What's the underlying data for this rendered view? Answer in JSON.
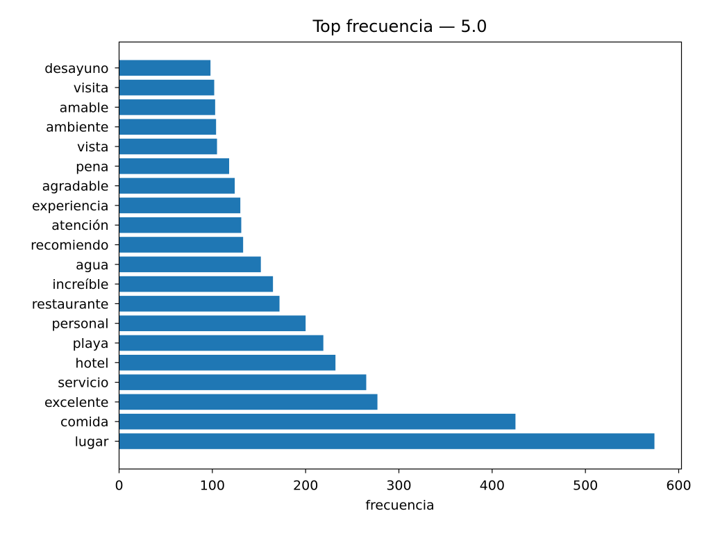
{
  "chart_data": {
    "type": "bar",
    "orientation": "horizontal",
    "title": "Top frecuencia — 5.0",
    "xlabel": "frecuencia",
    "ylabel": "",
    "xlim": [
      0,
      603
    ],
    "xticks": [
      0,
      100,
      200,
      300,
      400,
      500,
      600
    ],
    "grid": false,
    "legend": "none",
    "bar_color": "#1f77b4",
    "categories": [
      "lugar",
      "comida",
      "excelente",
      "servicio",
      "hotel",
      "playa",
      "personal",
      "restaurante",
      "increíble",
      "agua",
      "recomiendo",
      "atención",
      "experiencia",
      "agradable",
      "pena",
      "vista",
      "ambiente",
      "amable",
      "visita",
      "desayuno"
    ],
    "values": [
      574,
      425,
      277,
      265,
      232,
      219,
      200,
      172,
      165,
      152,
      133,
      131,
      130,
      124,
      118,
      105,
      104,
      103,
      102,
      98
    ]
  }
}
